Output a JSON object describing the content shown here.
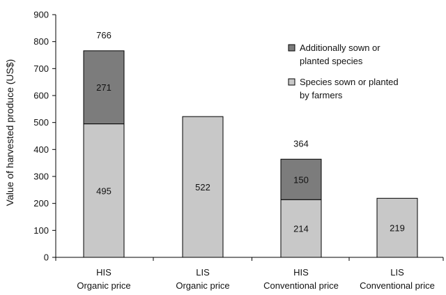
{
  "chart_data": {
    "type": "bar",
    "stacked": true,
    "title": "",
    "ylabel": "Value of harvested produce (US$)",
    "xlabel": "",
    "ylim": [
      0,
      900
    ],
    "yticks": [
      0,
      100,
      200,
      300,
      400,
      500,
      600,
      700,
      800,
      900
    ],
    "grid": false,
    "legend_position": "top-right",
    "categories": [
      {
        "line1": "HIS",
        "line2": "Organic price"
      },
      {
        "line1": "LIS",
        "line2": "Organic price"
      },
      {
        "line1": "HIS",
        "line2": "Conventional price"
      },
      {
        "line1": "LIS",
        "line2": "Conventional price"
      }
    ],
    "series": [
      {
        "name": "Species sown or planted by farmers",
        "legend_lines": [
          "Species sown or planted",
          "by farmers"
        ],
        "color": "#c8c8c8",
        "values": [
          495,
          522,
          214,
          219
        ]
      },
      {
        "name": "Additionally sown or planted species",
        "legend_lines": [
          "Additionally sown or",
          "planted species"
        ],
        "color": "#7c7c7c",
        "values": [
          271,
          0,
          150,
          0
        ]
      }
    ],
    "totals": [
      "766",
      "",
      "364",
      ""
    ],
    "segment_labels": [
      [
        "495",
        "522",
        "214",
        "219"
      ],
      [
        "271",
        "",
        "150",
        ""
      ]
    ]
  }
}
